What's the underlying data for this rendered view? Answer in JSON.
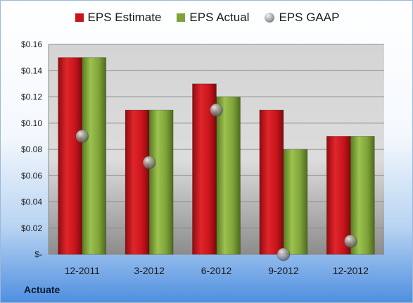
{
  "chart_data": {
    "type": "bar",
    "categories": [
      "12-2011",
      "3-2012",
      "6-2012",
      "9-2012",
      "12-2012"
    ],
    "series": [
      {
        "name": "EPS Estimate",
        "kind": "bar",
        "color": "#c8151b",
        "values": [
          0.15,
          0.11,
          0.13,
          0.11,
          0.09
        ]
      },
      {
        "name": "EPS Actual",
        "kind": "bar",
        "color": "#7fa33a",
        "values": [
          0.15,
          0.11,
          0.12,
          0.08,
          0.09
        ]
      },
      {
        "name": "EPS GAAP",
        "kind": "marker",
        "color": "#a8a8a8",
        "values": [
          0.09,
          0.07,
          0.11,
          0.0,
          0.01
        ]
      }
    ],
    "yticks": [
      "$-",
      "$0.02",
      "$0.04",
      "$0.06",
      "$0.08",
      "$0.10",
      "$0.12",
      "$0.14",
      "$0.16"
    ],
    "ylim": [
      0,
      0.16
    ],
    "grid": true,
    "legend_position": "top"
  },
  "footer": {
    "company": "Actuate"
  }
}
